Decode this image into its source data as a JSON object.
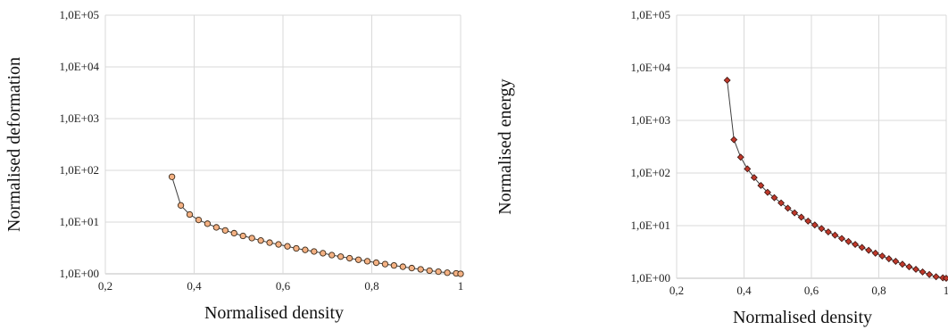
{
  "chart_data": [
    {
      "type": "scatter",
      "title": "",
      "xlabel": "Normalised density",
      "ylabel": "Normalised deformation",
      "xlim": [
        0.2,
        1
      ],
      "ylim": [
        1,
        100000
      ],
      "yscale": "log",
      "grid": true,
      "x_ticks": [
        "0,2",
        "0,4",
        "0,6",
        "0,8",
        "1"
      ],
      "y_ticks": [
        "1,0E+00",
        "1,0E+01",
        "1,0E+02",
        "1,0E+03",
        "1,0E+04",
        "1,0E+05"
      ],
      "marker_color": "#f4b183",
      "marker_shape": "circle",
      "line_color": "#404040",
      "series": [
        {
          "x": [
            0.35,
            0.37,
            0.39,
            0.41,
            0.43,
            0.45,
            0.47,
            0.49,
            0.51,
            0.53,
            0.55,
            0.57,
            0.59,
            0.61,
            0.63,
            0.65,
            0.67,
            0.69,
            0.71,
            0.73,
            0.75,
            0.77,
            0.79,
            0.81,
            0.83,
            0.85,
            0.87,
            0.89,
            0.91,
            0.93,
            0.95,
            0.97,
            0.99,
            1.0
          ],
          "values": [
            75,
            21,
            14,
            11,
            9.3,
            7.9,
            6.9,
            6.1,
            5.4,
            4.9,
            4.4,
            4.0,
            3.7,
            3.4,
            3.1,
            2.9,
            2.7,
            2.5,
            2.3,
            2.15,
            2.0,
            1.87,
            1.75,
            1.64,
            1.54,
            1.45,
            1.37,
            1.29,
            1.22,
            1.15,
            1.1,
            1.05,
            1.02,
            1.0
          ]
        }
      ]
    },
    {
      "type": "scatter",
      "title": "",
      "xlabel": "Normalised density",
      "ylabel": "Normalised energy",
      "xlim": [
        0.2,
        1
      ],
      "ylim": [
        1,
        100000
      ],
      "yscale": "log",
      "grid": true,
      "x_ticks": [
        "0,2",
        "0,4",
        "0,6",
        "0,8",
        "1"
      ],
      "y_ticks": [
        "1,0E+00",
        "1,0E+01",
        "1,0E+02",
        "1,0E+03",
        "1,0E+04",
        "1,0E+05"
      ],
      "marker_color": "#c0392b",
      "marker_shape": "diamond",
      "line_color": "#404040",
      "series": [
        {
          "x": [
            0.35,
            0.37,
            0.39,
            0.41,
            0.43,
            0.45,
            0.47,
            0.49,
            0.51,
            0.53,
            0.55,
            0.57,
            0.59,
            0.61,
            0.63,
            0.65,
            0.67,
            0.69,
            0.71,
            0.73,
            0.75,
            0.77,
            0.79,
            0.81,
            0.83,
            0.85,
            0.87,
            0.89,
            0.91,
            0.93,
            0.95,
            0.97,
            0.99,
            1.0
          ],
          "values": [
            5800,
            430,
            200,
            120,
            82,
            58,
            43,
            34,
            27,
            21.5,
            17.5,
            14.5,
            12.2,
            10.3,
            8.8,
            7.6,
            6.6,
            5.7,
            5.0,
            4.4,
            3.85,
            3.4,
            3.0,
            2.65,
            2.35,
            2.1,
            1.85,
            1.65,
            1.48,
            1.32,
            1.18,
            1.07,
            1.02,
            1.0
          ]
        }
      ]
    }
  ]
}
